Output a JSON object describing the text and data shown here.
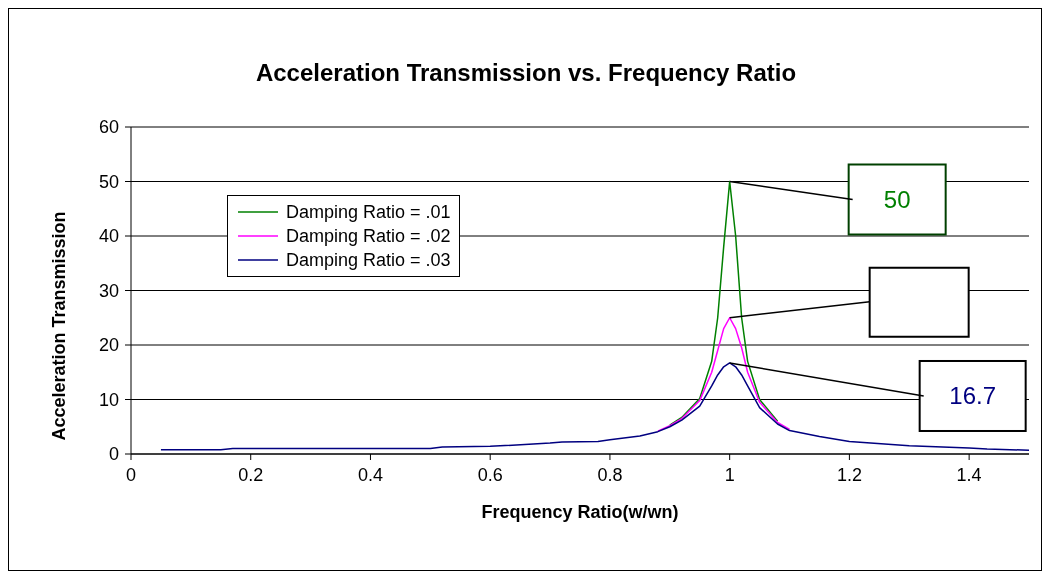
{
  "chart_data": {
    "type": "line",
    "title": "Acceleration Transmission vs. Frequency Ratio",
    "xlabel": "Frequency Ratio(w/wn)",
    "ylabel": "Acceleration Transmission",
    "series": [
      {
        "name": "Damping Ratio = .01",
        "color": "#008000",
        "x": [
          0.9,
          0.92,
          0.95,
          0.97,
          0.98,
          0.99,
          1.0,
          1.01,
          1.02,
          1.03,
          1.05,
          1.08
        ],
        "values": [
          5.3,
          6.7,
          10.2,
          17,
          25,
          38,
          50,
          40,
          25,
          17,
          10,
          6
        ]
      },
      {
        "name": "Damping Ratio = .02",
        "color": "#ff00ff",
        "x": [
          0.88,
          0.9,
          0.92,
          0.95,
          0.97,
          0.98,
          0.99,
          1.0,
          1.01,
          1.02,
          1.03,
          1.05,
          1.08,
          1.1
        ],
        "values": [
          4.2,
          5.2,
          6.5,
          9.8,
          15,
          19,
          23,
          25,
          23,
          19.5,
          15,
          9.5,
          5.8,
          4.5
        ]
      },
      {
        "name": "Damping Ratio = .03",
        "color": "#000080",
        "x": [
          0.05,
          0.15,
          0.17,
          0.5,
          0.52,
          0.6,
          0.7,
          0.72,
          0.78,
          0.8,
          0.85,
          0.88,
          0.9,
          0.92,
          0.95,
          0.97,
          0.98,
          0.99,
          1.0,
          1.01,
          1.02,
          1.03,
          1.05,
          1.08,
          1.1,
          1.15,
          1.2,
          1.3,
          1.4,
          1.43,
          1.5
        ],
        "values": [
          0.8,
          0.8,
          1,
          1,
          1.3,
          1.4,
          2,
          2.2,
          2.3,
          2.6,
          3.3,
          4.1,
          5,
          6.2,
          8.8,
          12.5,
          14.5,
          16,
          16.7,
          16,
          14.5,
          12.5,
          8.5,
          5.5,
          4.3,
          3.2,
          2.3,
          1.5,
          1.1,
          0.9,
          0.7
        ]
      }
    ],
    "xlim": [
      0,
      1.5
    ],
    "xticks": [
      0,
      0.2,
      0.4,
      0.6,
      0.8,
      1,
      1.2,
      1.4
    ],
    "ylim": [
      0,
      60
    ],
    "yticks": [
      0,
      10,
      20,
      30,
      40,
      50,
      60
    ],
    "grid": "y",
    "legend": "top left",
    "marker": "none",
    "line_style": "solid",
    "annotations": [
      {
        "text": "50",
        "x": 1,
        "y": 50
      },
      {
        "text": "16.7",
        "x": 1,
        "y": 16.7
      }
    ]
  }
}
